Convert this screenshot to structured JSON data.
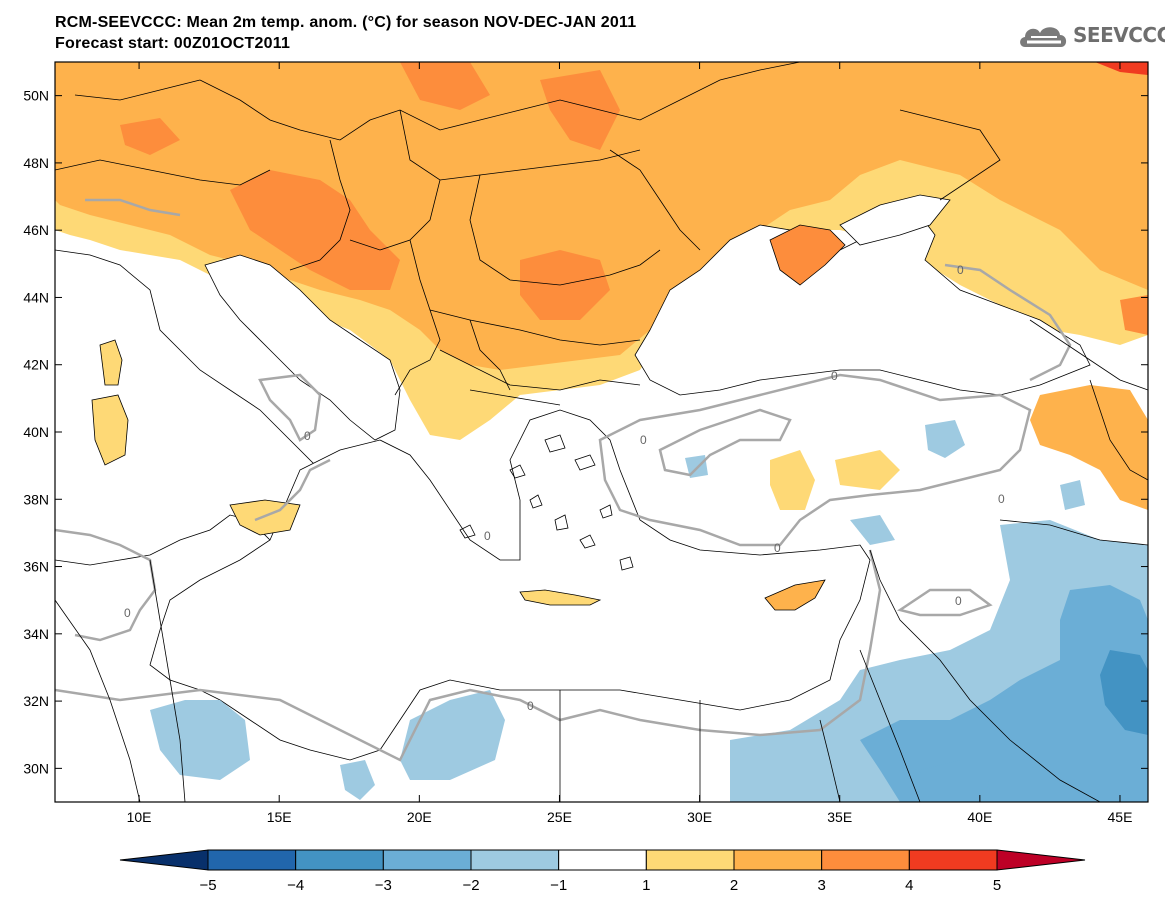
{
  "header": {
    "title_line1": "RCM-SEEVCCC: Mean 2m temp. anom. (°C) for season NOV-DEC-JAN 2011",
    "title_line2": "Forecast start: 00Z01OCT2011",
    "logo_text": "SEEVCCC"
  },
  "map": {
    "lon_range": [
      7,
      46
    ],
    "lat_range": [
      29,
      51
    ],
    "lat_ticks": [
      "50N",
      "48N",
      "46N",
      "44N",
      "42N",
      "40N",
      "38N",
      "36N",
      "34N",
      "32N",
      "30N"
    ],
    "lon_ticks": [
      "10E",
      "15E",
      "20E",
      "25E",
      "30E",
      "35E",
      "40E",
      "45E"
    ],
    "contour_label": "0"
  },
  "colorbar": {
    "labels": [
      "−5",
      "−4",
      "−3",
      "−2",
      "−1",
      "1",
      "2",
      "3",
      "4",
      "5"
    ],
    "colors": [
      "#08306b",
      "#2166ac",
      "#4393c3",
      "#6baed6",
      "#9ecae1",
      "#ffffff",
      "#fed976",
      "#feb24c",
      "#fd8d3c",
      "#f03b20",
      "#bd0026"
    ]
  }
}
